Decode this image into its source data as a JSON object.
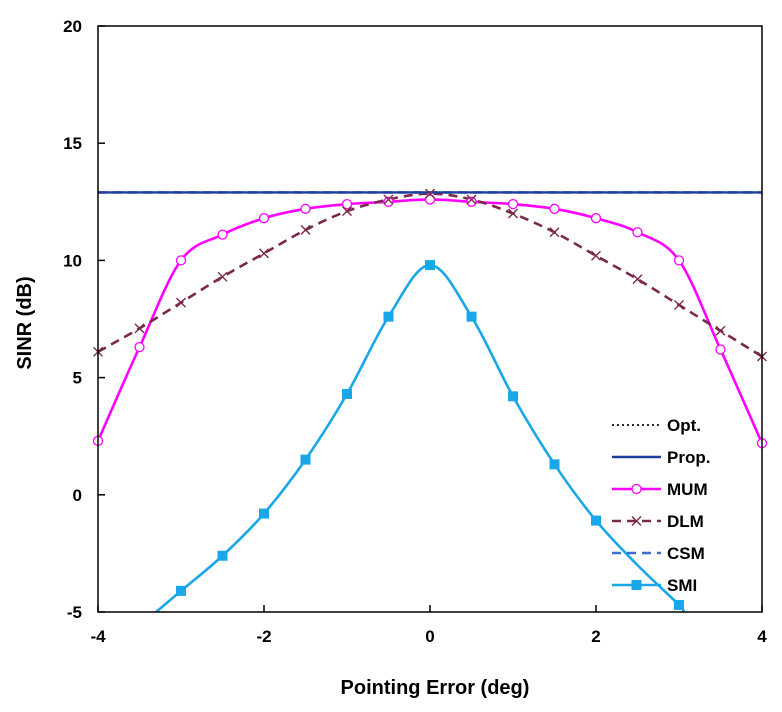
{
  "chart_data": {
    "type": "line",
    "title": "",
    "xlabel": "Pointing Error (deg)",
    "ylabel": "SINR (dB)",
    "xlim": [
      -4,
      4
    ],
    "ylim": [
      -5,
      20
    ],
    "xticks": [
      -4,
      -2,
      0,
      2,
      4
    ],
    "yticks": [
      -5,
      0,
      5,
      10,
      15,
      20
    ],
    "xtick_labels": [
      "-4",
      "-2",
      "0",
      "2",
      "4"
    ],
    "ytick_labels": [
      "-5",
      "0",
      "5",
      "10",
      "15",
      "20"
    ],
    "grid": false,
    "legend_position": "bottom-right",
    "series": [
      {
        "name": "Opt.",
        "color": "#2b2b2b",
        "dash": "dotted",
        "marker": "none",
        "x": [
          -4,
          4
        ],
        "y": [
          12.9,
          12.9
        ]
      },
      {
        "name": "Prop.",
        "color": "#1f3f9f",
        "dash": "solid",
        "marker": "none",
        "x": [
          -4,
          4
        ],
        "y": [
          12.9,
          12.9
        ]
      },
      {
        "name": "MUM",
        "color": "#ff00ff",
        "dash": "solid",
        "marker": "circle",
        "x": [
          -4,
          -3.5,
          -3,
          -2.5,
          -2,
          -1.5,
          -1,
          -0.5,
          0,
          0.5,
          1,
          1.5,
          2,
          2.5,
          3,
          3.5,
          4
        ],
        "y": [
          2.3,
          6.3,
          10.0,
          11.1,
          11.8,
          12.2,
          12.4,
          12.5,
          12.6,
          12.5,
          12.4,
          12.2,
          11.8,
          11.2,
          10.0,
          6.2,
          2.2
        ]
      },
      {
        "name": "DLM",
        "color": "#7a2a48",
        "dash": "dashed",
        "marker": "x",
        "x": [
          -4,
          -3.5,
          -3,
          -2.5,
          -2,
          -1.5,
          -1,
          -0.5,
          0,
          0.5,
          1,
          1.5,
          2,
          2.5,
          3,
          3.5,
          4
        ],
        "y": [
          6.1,
          7.1,
          8.2,
          9.3,
          10.3,
          11.3,
          12.1,
          12.6,
          12.85,
          12.6,
          12.0,
          11.2,
          10.2,
          9.2,
          8.1,
          7.0,
          5.9
        ]
      },
      {
        "name": "CSM",
        "color": "#3a6fd0",
        "dash": "dashed",
        "marker": "none",
        "x": [
          -4,
          4
        ],
        "y": [
          12.9,
          12.9
        ]
      },
      {
        "name": "SMI",
        "color": "#1aa7ea",
        "dash": "solid",
        "marker": "square",
        "x": [
          -3.3,
          -3,
          -2.5,
          -2,
          -1.5,
          -1,
          -0.5,
          0,
          0.5,
          1,
          1.5,
          2,
          2.5,
          3,
          3.05
        ],
        "y": [
          -5.0,
          -4.1,
          -2.6,
          -0.8,
          1.5,
          4.3,
          7.6,
          9.8,
          7.6,
          4.2,
          1.3,
          -1.1,
          -3.0,
          -4.7,
          -5.0
        ],
        "marked": [
          false,
          true,
          true,
          true,
          true,
          true,
          true,
          true,
          true,
          true,
          true,
          true,
          false,
          true,
          false
        ]
      }
    ],
    "legend_order": [
      "Opt.",
      "Prop.",
      "MUM",
      "DLM",
      "CSM",
      "SMI"
    ]
  }
}
